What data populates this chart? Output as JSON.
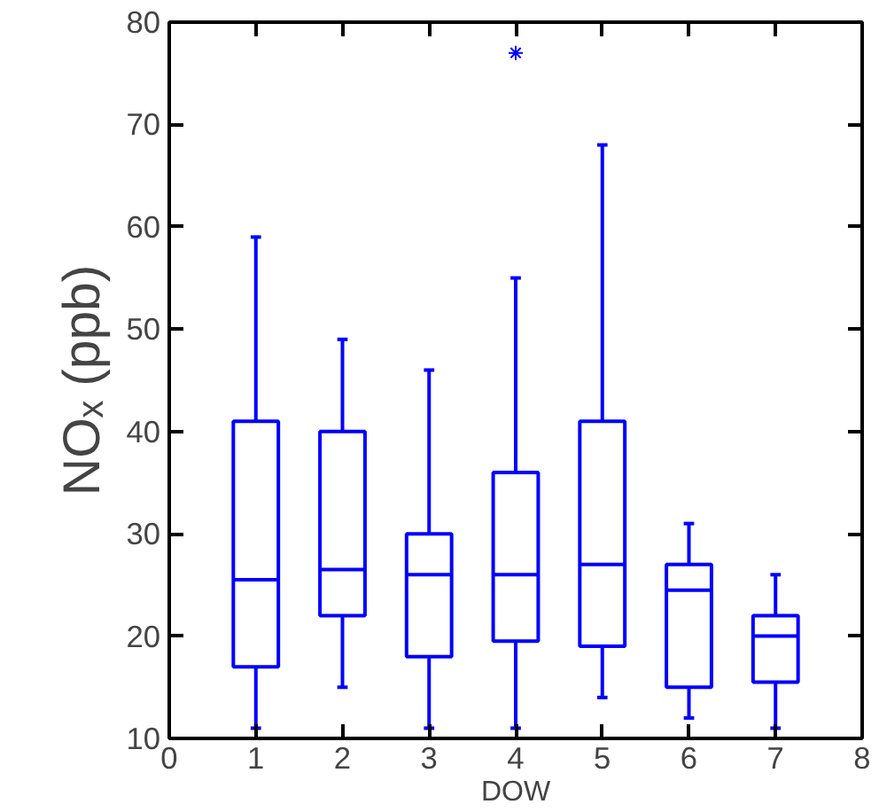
{
  "chart_data": {
    "type": "box",
    "xlabel": "DOW",
    "ylabel": "NOₓ (ppb)",
    "x": [
      1,
      2,
      3,
      4,
      5,
      6,
      7
    ],
    "color": "#0000ff",
    "boxes": [
      {
        "low": 11,
        "q1": 17,
        "median": 25.5,
        "q3": 41,
        "high": 59
      },
      {
        "low": 15,
        "q1": 22,
        "median": 26.5,
        "q3": 40,
        "high": 49
      },
      {
        "low": 11,
        "q1": 18,
        "median": 26,
        "q3": 30,
        "high": 46
      },
      {
        "low": 11,
        "q1": 19.5,
        "median": 26,
        "q3": 36,
        "high": 55,
        "outliers": [
          77
        ]
      },
      {
        "low": 14,
        "q1": 19,
        "median": 27,
        "q3": 41,
        "high": 68
      },
      {
        "low": 12,
        "q1": 15,
        "median": 24.5,
        "q3": 27,
        "high": 31
      },
      {
        "low": 11,
        "q1": 15.5,
        "median": 20,
        "q3": 22,
        "high": 26
      }
    ],
    "xlim": [
      0,
      8
    ],
    "ylim": [
      10,
      80
    ],
    "xticks": [
      0,
      1,
      2,
      3,
      4,
      5,
      6,
      7,
      8
    ],
    "yticks": [
      10,
      20,
      30,
      40,
      50,
      60,
      70,
      80
    ],
    "grid": false
  }
}
